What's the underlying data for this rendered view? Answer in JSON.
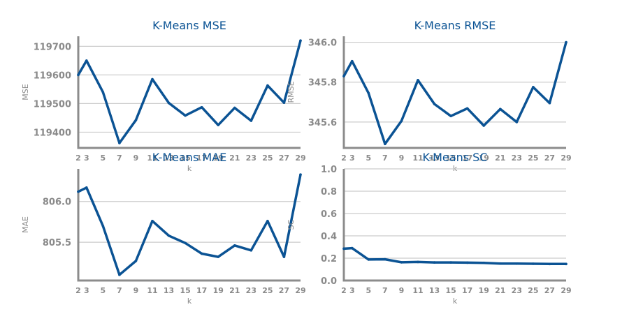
{
  "colors": {
    "line": "#0b5394",
    "axis": "#8c8c8c",
    "grid": "#cccccc",
    "text": "#8a8a8a",
    "title": "#0b5394"
  },
  "chart_data": [
    {
      "type": "line",
      "title": "K-Means MSE",
      "xlabel": "k",
      "ylabel": "MSE",
      "x": [
        2,
        3,
        5,
        7,
        9,
        11,
        13,
        15,
        17,
        19,
        21,
        23,
        25,
        27,
        29
      ],
      "xticks": [
        2,
        3,
        5,
        7,
        9,
        11,
        13,
        15,
        17,
        19,
        21,
        23,
        25,
        27,
        29
      ],
      "xlim": [
        2,
        29
      ],
      "ylim": [
        119345,
        119735
      ],
      "yticks": [
        119400,
        119500,
        119600,
        119700
      ],
      "ytick_labels": [
        "119400",
        "119500",
        "119600",
        "119700"
      ],
      "grid": true,
      "series": [
        {
          "values": [
            119600,
            119650,
            119540,
            119362,
            119442,
            119585,
            119502,
            119458,
            119487,
            119425,
            119485,
            119440,
            119563,
            119503,
            119720
          ]
        }
      ]
    },
    {
      "type": "line",
      "title": "K-Means RMSE",
      "xlabel": "k",
      "ylabel": "RMSE",
      "x": [
        2,
        3,
        5,
        7,
        9,
        11,
        13,
        15,
        17,
        19,
        21,
        23,
        25,
        27,
        29
      ],
      "xticks": [
        2,
        3,
        5,
        7,
        9,
        11,
        13,
        15,
        17,
        19,
        21,
        23,
        25,
        27,
        29
      ],
      "xlim": [
        2,
        29
      ],
      "ylim": [
        345.47,
        346.03
      ],
      "yticks": [
        345.6,
        345.8,
        346.0
      ],
      "ytick_labels": [
        "345.6",
        "345.8",
        "346.0"
      ],
      "grid": true,
      "series": [
        {
          "values": [
            345.83,
            345.905,
            345.745,
            345.49,
            345.605,
            345.81,
            345.69,
            345.63,
            345.668,
            345.582,
            345.665,
            345.6,
            345.775,
            345.695,
            346.0
          ]
        }
      ]
    },
    {
      "type": "line",
      "title": "K-Means MAE",
      "xlabel": "k",
      "ylabel": "MAE",
      "x": [
        2,
        3,
        5,
        7,
        9,
        11,
        13,
        15,
        17,
        19,
        21,
        23,
        25,
        27,
        29
      ],
      "xticks": [
        2,
        3,
        5,
        7,
        9,
        11,
        13,
        15,
        17,
        19,
        21,
        23,
        25,
        27,
        29
      ],
      "xlim": [
        2,
        29
      ],
      "ylim": [
        805.03,
        806.4
      ],
      "yticks": [
        805.5,
        806.0
      ],
      "ytick_labels": [
        "805.5",
        "806.0"
      ],
      "grid": true,
      "series": [
        {
          "values": [
            806.12,
            806.17,
            805.7,
            805.1,
            805.27,
            805.76,
            805.58,
            805.49,
            805.36,
            805.32,
            805.46,
            805.4,
            805.76,
            805.32,
            806.33
          ]
        }
      ]
    },
    {
      "type": "line",
      "title": "K-Means SC",
      "xlabel": "k",
      "ylabel": "SC",
      "x": [
        2,
        3,
        5,
        7,
        9,
        11,
        13,
        15,
        17,
        19,
        21,
        23,
        25,
        27,
        29
      ],
      "xticks": [
        2,
        3,
        5,
        7,
        9,
        11,
        13,
        15,
        17,
        19,
        21,
        23,
        25,
        27,
        29
      ],
      "xlim": [
        2,
        29
      ],
      "ylim": [
        0,
        1.0
      ],
      "yticks": [
        0.0,
        0.2,
        0.4,
        0.6,
        0.8,
        1.0
      ],
      "ytick_labels": [
        "0.0",
        "0.2",
        "0.4",
        "0.6",
        "0.8",
        "1.0"
      ],
      "grid": true,
      "series": [
        {
          "values": [
            0.285,
            0.29,
            0.188,
            0.19,
            0.163,
            0.166,
            0.162,
            0.162,
            0.16,
            0.158,
            0.152,
            0.151,
            0.15,
            0.148,
            0.148
          ]
        }
      ]
    }
  ]
}
